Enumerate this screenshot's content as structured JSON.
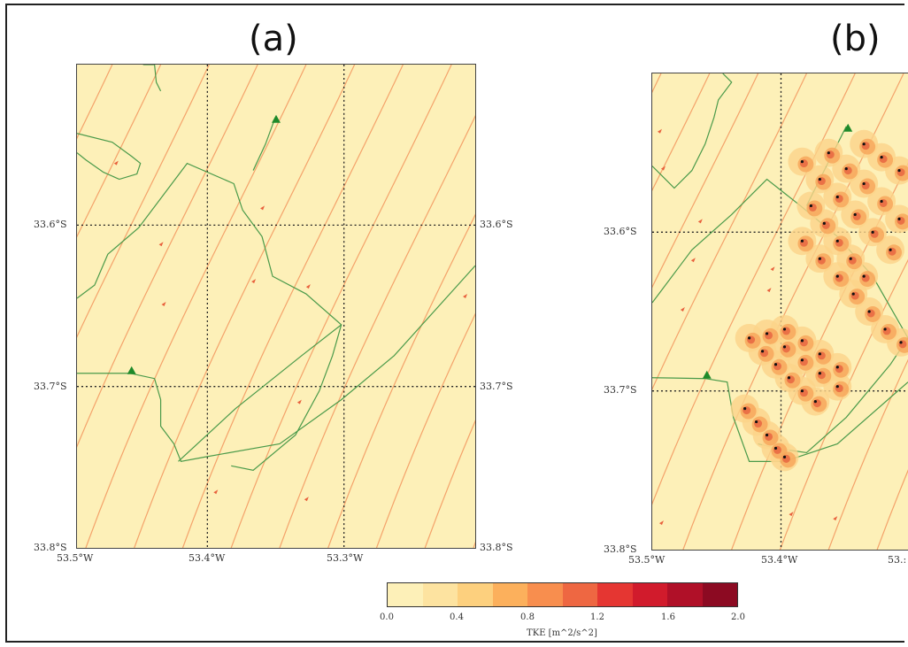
{
  "panels": [
    {
      "label": "(a)",
      "lat_ticks": [
        "33.6°S",
        "33.7°S",
        "33.8°S"
      ],
      "lon_ticks": [
        "53.5°W",
        "53.4°W",
        "53.3°W"
      ],
      "has_turbines": false
    },
    {
      "label": "(b)",
      "lat_ticks": [
        "33.6°S",
        "33.7°S",
        "33.8°S"
      ],
      "lon_ticks": [
        "53.5°W",
        "53.4°W",
        "53.:"
      ],
      "has_turbines": true
    }
  ],
  "colorbar": {
    "label": "TKE [m^2/s^2]",
    "ticks": [
      "0.0",
      "0.4",
      "0.8",
      "1.2",
      "1.6",
      "2.0"
    ],
    "colors": [
      "#fdf0b8",
      "#fde3a0",
      "#fdd07e",
      "#fcb05c",
      "#f88e4e",
      "#ee6742",
      "#e53632",
      "#d11b2c",
      "#b01028",
      "#8c0a22"
    ]
  },
  "colors": {
    "background": "#fdf0b8",
    "streamline": "#f4a26a",
    "boundary": "#4a9a4a",
    "marker": "#1e8a2a",
    "grid": "#222222"
  }
}
